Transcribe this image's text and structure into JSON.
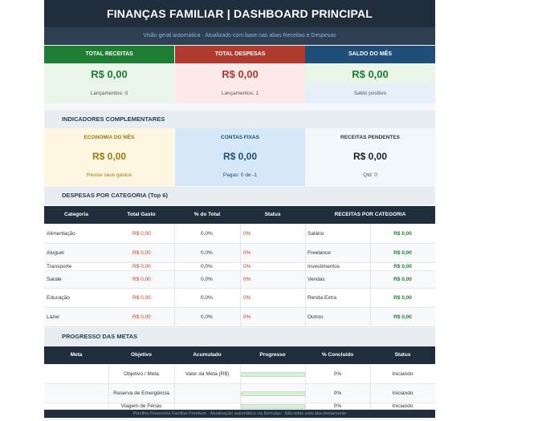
{
  "title": "FINANÇAS FAMILIAR  |  DASHBOARD PRINCIPAL",
  "subtitle": "Visão geral automática · Atualizado com base nas abas Receitas e Despesas",
  "kpis": [
    {
      "label": "TOTAL RECEITAS",
      "value": "R$ 0,00",
      "sub": "Lançamentos: 0",
      "color": "#1e7e34"
    },
    {
      "label": "TOTAL DESPESAS",
      "value": "R$ 0,00",
      "sub": "Lançamentos: 1",
      "color": "#b03a2e"
    },
    {
      "label": "SALDO DO MÊS",
      "value": "R$ 0,00",
      "sub": "Saldo positivo",
      "color": "#1f4e79"
    }
  ],
  "indicators_title": "INDICADORES COMPLEMENTARES",
  "indicators": [
    {
      "label": "ECONOMIA DO MÊS",
      "value": "R$ 0,00",
      "sub": "Revise seus gastos"
    },
    {
      "label": "CONTAS FIXAS",
      "value": "R$ 0,00",
      "sub": "Pagas: 0 de -1"
    },
    {
      "label": "RECEITAS PENDENTES",
      "value": "R$ 0,00",
      "sub": "Qtd: 0"
    }
  ],
  "expenses_title": "DESPESAS POR CATEGORIA (Top 6)",
  "expenses_headers": [
    "Categoria",
    "Total Gasto",
    "% do Total",
    "Status",
    "RECEITAS POR CATEGORIA"
  ],
  "expenses_rows": [
    {
      "cat": "Alimentação",
      "total": "R$ 0,00",
      "pct": "0,0%",
      "status": "0%",
      "rcat": "Salário",
      "rval": "R$ 0,00"
    },
    {
      "cat": "Aluguel",
      "total": "R$ 0,00",
      "pct": "0,0%",
      "status": "0%",
      "rcat": "Freelance",
      "rval": "R$ 0,00"
    },
    {
      "cat": "Transporte",
      "total": "R$ 0,00",
      "pct": "0,0%",
      "status": "0%",
      "rcat": "Investimentos",
      "rval": "R$ 0,00"
    },
    {
      "cat": "Saúde",
      "total": "R$ 0,00",
      "pct": "0,0%",
      "status": "0%",
      "rcat": "Vendas",
      "rval": "R$ 0,00"
    },
    {
      "cat": "Educação",
      "total": "R$ 0,00",
      "pct": "0,0%",
      "status": "0%",
      "rcat": "Renda Extra",
      "rval": "R$ 0,00"
    },
    {
      "cat": "Lazer",
      "total": "R$ 0,00",
      "pct": "0,0%",
      "status": "0%",
      "rcat": "Outros",
      "rval": "R$ 0,00"
    }
  ],
  "goals_title": "PROGRESSO DAS METAS",
  "goals_headers": [
    "Meta",
    "Objetivo",
    "Acumulado",
    "Progresso",
    "% Concluído",
    "Status"
  ],
  "goals_rows": [
    {
      "meta": "",
      "objetivo": "Objetivo / Meta",
      "acumulado": "Valor da Meta (R$)",
      "pct": "0%",
      "status": "Iniciando"
    },
    {
      "meta": "",
      "objetivo": "Reserva de Emergência",
      "acumulado": "",
      "pct": "0%",
      "status": "Iniciando"
    },
    {
      "meta": "",
      "objetivo": "Viagem de Férias",
      "acumulado": "",
      "pct": "0%",
      "status": "Iniciando"
    }
  ],
  "footer": "Planilha Financeira Familiar Premium  ·  Atualização automática via fórmulas  ·  Não edite esta aba diretamente"
}
